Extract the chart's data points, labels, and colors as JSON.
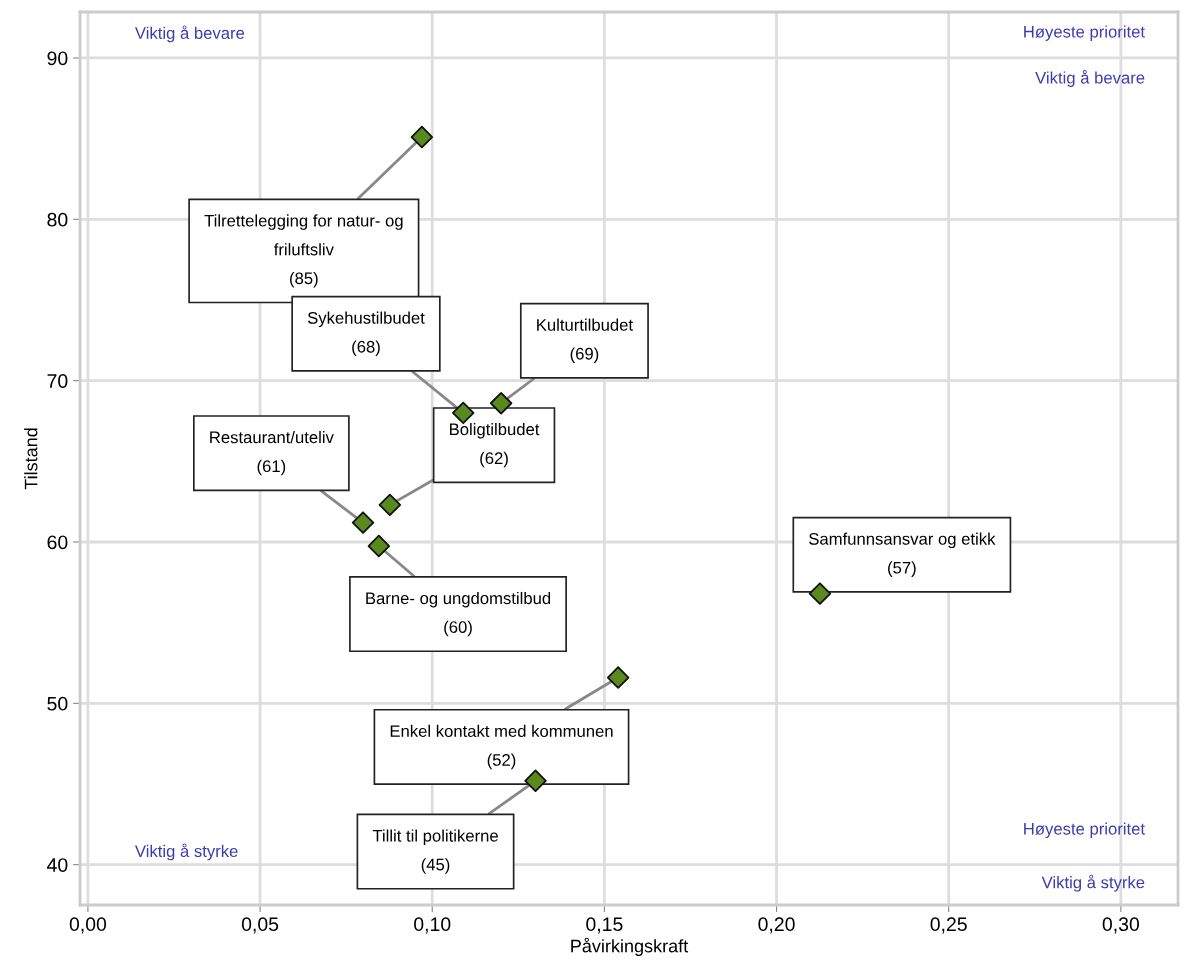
{
  "chart_data": {
    "type": "scatter",
    "xlabel": "Påvirkingskraft",
    "ylabel": "Tilstand",
    "x": [
      0.097,
      0.109,
      0.12,
      0.0877,
      0.0799,
      0.0845,
      0.2126,
      0.154,
      0.13
    ],
    "series": [
      {
        "color": "#5a8a1e",
        "values": [
          85.1,
          68.0,
          68.6,
          62.3,
          61.2,
          59.75,
          56.8,
          51.6,
          45.2
        ]
      }
    ],
    "marker": "diamond",
    "xlim": [
      -0.0023,
      0.3166
    ],
    "ylim": [
      37.5,
      92.85
    ],
    "xticks": [
      {
        "value": 0,
        "label": "0,00"
      },
      {
        "value": 0.05,
        "label": "0,05"
      },
      {
        "value": 0.1,
        "label": "0,10"
      },
      {
        "value": 0.15,
        "label": "0,15"
      },
      {
        "value": 0.2,
        "label": "0,20"
      },
      {
        "value": 0.25,
        "label": "0,25"
      },
      {
        "value": 0.3,
        "label": "0,30"
      }
    ],
    "yticks": [
      40,
      50,
      60,
      70,
      80,
      90
    ],
    "grid": true,
    "legend": false,
    "annotations": [
      {
        "text": "Tilrettelegging for natur- og\nfriluftsliv\n(85)",
        "x": 0.097,
        "y": 85.1
      },
      {
        "text": "Sykehustilbudet\n(68)",
        "x": 0.109,
        "y": 68.0
      },
      {
        "text": "Kulturtilbudet\n(69)",
        "x": 0.12,
        "y": 68.6
      },
      {
        "text": "Boligtilbudet\n(62)",
        "x": 0.0877,
        "y": 62.3
      },
      {
        "text": "Restaurant/uteliv\n(61)",
        "x": 0.0799,
        "y": 61.2
      },
      {
        "text": "Barne- og ungdomstilbud\n(60)",
        "x": 0.0845,
        "y": 59.75
      },
      {
        "text": "Samfunnsansvar og etikk\n(57)",
        "x": 0.2126,
        "y": 56.8
      },
      {
        "text": "Enkel kontakt med kommunen\n(52)",
        "x": 0.154,
        "y": 51.6
      },
      {
        "text": "Tillit til politikerne\n(45)",
        "x": 0.13,
        "y": 45.2
      },
      "Viktig å bevare",
      "Høyeste prioritet",
      "Viktig å bevare",
      "Viktig å styrke",
      "Høyeste prioritet",
      "Viktig å styrke"
    ]
  }
}
